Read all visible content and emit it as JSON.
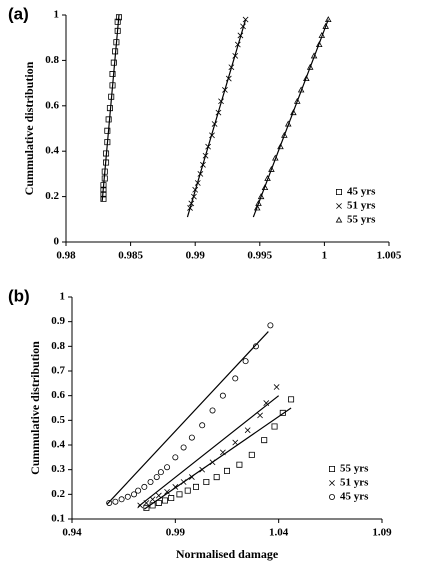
{
  "chart_data": [
    {
      "type": "scatter",
      "panel_label": "(a)",
      "y_label": "Cummulative distribution",
      "xlim": [
        0.98,
        1.005
      ],
      "ylim": [
        0,
        1
      ],
      "xticks": [
        0.98,
        0.985,
        0.99,
        0.995,
        1,
        1.005
      ],
      "yticks": [
        0,
        0.2,
        0.4,
        0.6,
        0.8,
        1
      ],
      "legend": "lower right",
      "series": [
        {
          "name": "45 yrs",
          "color": "#000000",
          "marker": "square",
          "x": [
            0.9829,
            0.9829,
            0.9829,
            0.9829,
            0.983,
            0.983,
            0.9831,
            0.9831,
            0.9832,
            0.9832,
            0.9833,
            0.9834,
            0.9835,
            0.9836,
            0.9836,
            0.9837,
            0.9838,
            0.9839,
            0.984,
            0.984,
            0.9841
          ],
          "values": [
            0.19,
            0.21,
            0.23,
            0.25,
            0.28,
            0.31,
            0.35,
            0.39,
            0.44,
            0.49,
            0.54,
            0.59,
            0.64,
            0.69,
            0.74,
            0.79,
            0.84,
            0.88,
            0.93,
            0.97,
            0.99
          ]
        },
        {
          "name": "51 yrs",
          "color": "#000000",
          "marker": "x",
          "x": [
            0.9896,
            0.9897,
            0.9899,
            0.99,
            0.9902,
            0.9904,
            0.9906,
            0.9908,
            0.991,
            0.9913,
            0.9915,
            0.9918,
            0.992,
            0.9923,
            0.9926,
            0.9928,
            0.9931,
            0.9933,
            0.9935,
            0.9937,
            0.9939
          ],
          "values": [
            0.15,
            0.17,
            0.2,
            0.23,
            0.26,
            0.3,
            0.34,
            0.38,
            0.42,
            0.47,
            0.52,
            0.57,
            0.62,
            0.67,
            0.72,
            0.77,
            0.82,
            0.87,
            0.91,
            0.95,
            0.98
          ]
        },
        {
          "name": "55 yrs",
          "color": "#000000",
          "marker": "triangle",
          "x": [
            0.9948,
            0.9949,
            0.9951,
            0.9954,
            0.9956,
            0.9959,
            0.9962,
            0.9966,
            0.9969,
            0.9972,
            0.9976,
            0.9979,
            0.9982,
            0.9986,
            0.9989,
            0.9992,
            0.9996,
            0.9998,
            1.0001,
            1.0003
          ],
          "values": [
            0.15,
            0.17,
            0.2,
            0.24,
            0.28,
            0.32,
            0.37,
            0.42,
            0.47,
            0.52,
            0.57,
            0.62,
            0.67,
            0.72,
            0.77,
            0.82,
            0.87,
            0.91,
            0.95,
            0.98
          ]
        }
      ],
      "fit_lines": [
        {
          "x": [
            0.9828,
            0.9841
          ],
          "values": [
            0.18,
            1
          ]
        },
        {
          "x": [
            0.9894,
            0.9939
          ],
          "values": [
            0.11,
            0.98
          ]
        },
        {
          "x": [
            0.9945,
            1.0003
          ],
          "values": [
            0.11,
            0.98
          ]
        }
      ]
    },
    {
      "type": "scatter",
      "panel_label": "(b)",
      "y_label": "Cummulative distribution",
      "x_label": "Normalised damage",
      "xlim": [
        0.94,
        1.09
      ],
      "ylim": [
        0.1,
        1
      ],
      "xticks": [
        0.94,
        0.99,
        1.04,
        1.09
      ],
      "yticks": [
        0.1,
        0.2,
        0.3,
        0.4,
        0.5,
        0.6,
        0.7,
        0.8,
        0.9,
        1
      ],
      "legend": "lower right",
      "series": [
        {
          "name": "55 yrs",
          "color": "#000000",
          "marker": "square",
          "x": [
            0.976,
            0.979,
            0.982,
            0.985,
            0.988,
            0.992,
            0.996,
            1.0,
            1.005,
            1.01,
            1.015,
            1.021,
            1.027,
            1.033,
            1.038,
            1.042,
            1.046
          ],
          "values": [
            0.145,
            0.155,
            0.165,
            0.175,
            0.185,
            0.2,
            0.215,
            0.23,
            0.25,
            0.27,
            0.295,
            0.32,
            0.36,
            0.42,
            0.475,
            0.53,
            0.585
          ]
        },
        {
          "name": "51 yrs",
          "color": "#000000",
          "marker": "x",
          "x": [
            0.973,
            0.976,
            0.979,
            0.982,
            0.986,
            0.99,
            0.994,
            0.998,
            1.003,
            1.008,
            1.013,
            1.019,
            1.025,
            1.031,
            1.034,
            1.039
          ],
          "values": [
            0.155,
            0.165,
            0.18,
            0.195,
            0.21,
            0.23,
            0.25,
            0.27,
            0.3,
            0.33,
            0.37,
            0.41,
            0.46,
            0.52,
            0.57,
            0.635
          ]
        },
        {
          "name": "45 yrs",
          "color": "#000000",
          "marker": "circle",
          "x": [
            0.958,
            0.961,
            0.964,
            0.967,
            0.97,
            0.972,
            0.975,
            0.978,
            0.981,
            0.983,
            0.986,
            0.99,
            0.994,
            0.998,
            1.003,
            1.008,
            1.013,
            1.019,
            1.024,
            1.029,
            1.036
          ],
          "values": [
            0.165,
            0.17,
            0.18,
            0.19,
            0.2,
            0.215,
            0.23,
            0.25,
            0.27,
            0.29,
            0.31,
            0.35,
            0.39,
            0.43,
            0.48,
            0.54,
            0.6,
            0.67,
            0.74,
            0.8,
            0.885
          ]
        }
      ],
      "fit_lines": [
        {
          "x": [
            0.975,
            1.046
          ],
          "values": [
            0.14,
            0.55
          ]
        },
        {
          "x": [
            0.972,
            1.04
          ],
          "values": [
            0.15,
            0.6
          ]
        },
        {
          "x": [
            0.957,
            1.035
          ],
          "values": [
            0.16,
            0.86
          ]
        }
      ]
    }
  ]
}
